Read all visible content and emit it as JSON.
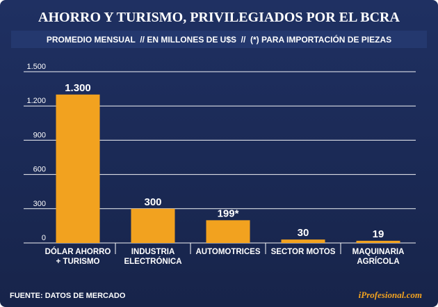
{
  "title": "AHORRO Y TURISMO, PRIVILEGIADOS POR EL BCRA",
  "subtitle": "PROMEDIO MENSUAL  // EN MILLONES DE U$S  //  (*) PARA IMPORTACIÓN DE PIEZAS",
  "source": "FUENTE: DATOS DE MERCADO",
  "brand": "iProfesional.com",
  "colors": {
    "background": "#1c2b55",
    "header_bar": "#203468",
    "accent": "#f2a21f",
    "text": "#ffffff",
    "brand_text": "#f2a21f"
  },
  "chart_data": {
    "type": "bar",
    "categories": [
      [
        "DÓLAR AHORRO",
        "+ TURISMO"
      ],
      [
        "INDUSTRIA",
        "ELECTRÓNICA"
      ],
      [
        "AUTOMOTRICES"
      ],
      [
        "SECTOR MOTOS"
      ],
      [
        "MAQUINARIA",
        "AGRÍCOLA"
      ]
    ],
    "values": [
      1300,
      300,
      199,
      30,
      19
    ],
    "data_labels": [
      "1.300",
      "300",
      "199*",
      "30",
      "19"
    ],
    "ylim": [
      0,
      1500
    ],
    "y_ticks": [
      0,
      300,
      600,
      900,
      1200,
      1500
    ],
    "y_tick_labels": [
      "0",
      "300",
      "600",
      "900",
      "1.200",
      "1.500"
    ],
    "grid": true,
    "title": "AHORRO Y TURISMO, PRIVILEGIADOS POR EL BCRA"
  }
}
